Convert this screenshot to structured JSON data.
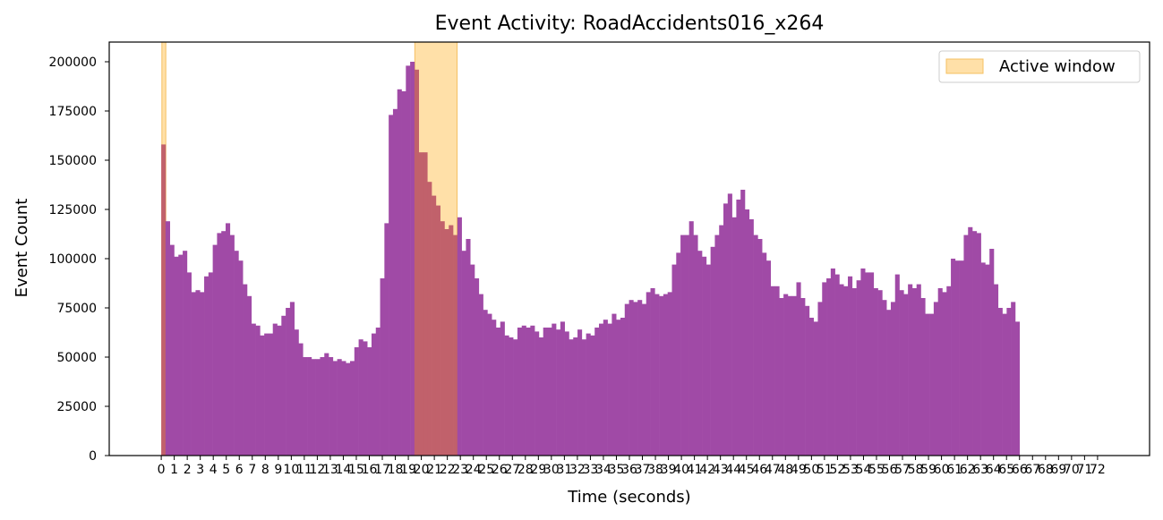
{
  "chart_data": {
    "type": "bar",
    "title": "Event Activity: RoadAccidents016_x264",
    "xlabel": "Time (seconds)",
    "ylabel": "Event Count",
    "xlim": [
      -4.0,
      76.0
    ],
    "ylim": [
      0,
      210000
    ],
    "x_ticks": [
      0,
      1,
      2,
      3,
      4,
      5,
      6,
      7,
      8,
      9,
      10,
      11,
      12,
      13,
      14,
      15,
      16,
      17,
      18,
      19,
      20,
      21,
      22,
      23,
      24,
      25,
      26,
      27,
      28,
      29,
      30,
      31,
      32,
      33,
      34,
      35,
      36,
      37,
      38,
      39,
      40,
      41,
      42,
      43,
      44,
      45,
      46,
      47,
      48,
      49,
      50,
      51,
      52,
      53,
      54,
      55,
      56,
      57,
      58,
      59,
      60,
      61,
      62,
      63,
      64,
      65,
      66,
      67,
      68,
      69,
      70,
      71,
      72
    ],
    "y_ticks": [
      0,
      25000,
      50000,
      75000,
      100000,
      125000,
      150000,
      175000,
      200000
    ],
    "bin_width": 0.33,
    "bin_start": 0.0,
    "values": [
      158000,
      119000,
      107000,
      101000,
      102000,
      104000,
      93000,
      83000,
      84000,
      83000,
      91000,
      93000,
      107000,
      113000,
      114000,
      118000,
      112000,
      104000,
      99000,
      87000,
      81000,
      67000,
      66000,
      61000,
      62000,
      62000,
      67000,
      66000,
      71000,
      75000,
      78000,
      64000,
      57000,
      50000,
      50000,
      49000,
      49000,
      50000,
      52000,
      50000,
      48000,
      49000,
      48000,
      47000,
      48000,
      55000,
      59000,
      58000,
      55000,
      62000,
      65000,
      90000,
      118000,
      173000,
      176000,
      186000,
      185000,
      198000,
      200000,
      196000,
      154000,
      154000,
      139000,
      132000,
      127000,
      119000,
      115000,
      117000,
      112000,
      121000,
      104000,
      110000,
      97000,
      90000,
      82000,
      74000,
      72000,
      69000,
      65000,
      68000,
      61000,
      60000,
      59000,
      65000,
      66000,
      65000,
      66000,
      63000,
      60000,
      65000,
      65000,
      67000,
      64000,
      68000,
      63000,
      59000,
      60000,
      64000,
      59000,
      62000,
      61000,
      65000,
      67000,
      69000,
      67000,
      72000,
      69000,
      70000,
      77000,
      79000,
      78000,
      79000,
      77000,
      83000,
      85000,
      82000,
      81000,
      82000,
      83000,
      97000,
      103000,
      112000,
      112000,
      119000,
      112000,
      104000,
      101000,
      97000,
      106000,
      112000,
      117000,
      128000,
      133000,
      121000,
      130000,
      135000,
      125000,
      120000,
      112000,
      110000,
      103000,
      99000,
      86000,
      86000,
      80000,
      82000,
      81000,
      81000,
      88000,
      80000,
      76000,
      70000,
      68000,
      78000,
      88000,
      90000,
      95000,
      92000,
      87000,
      86000,
      91000,
      85000,
      89000,
      95000,
      93000,
      93000,
      85000,
      84000,
      79000,
      74000,
      78000,
      92000,
      84000,
      82000,
      87000,
      85000,
      87000,
      80000,
      72000,
      72000,
      78000,
      85000,
      83000,
      86000,
      100000,
      99000,
      99000,
      112000,
      116000,
      114000,
      113000,
      98000,
      97000,
      105000,
      87000,
      75000,
      72000,
      75000,
      78000,
      68000
    ],
    "bar_color": "#a04aa6",
    "highlight_color": "#c1616b",
    "series": [
      {
        "name": "Active window",
        "color": "#ffe0a8",
        "edge": "#f5c062",
        "windows": [
          [
            0.05,
            0.35
          ],
          [
            19.5,
            22.75
          ]
        ]
      }
    ],
    "legend_position": "top-right",
    "grid": false
  }
}
